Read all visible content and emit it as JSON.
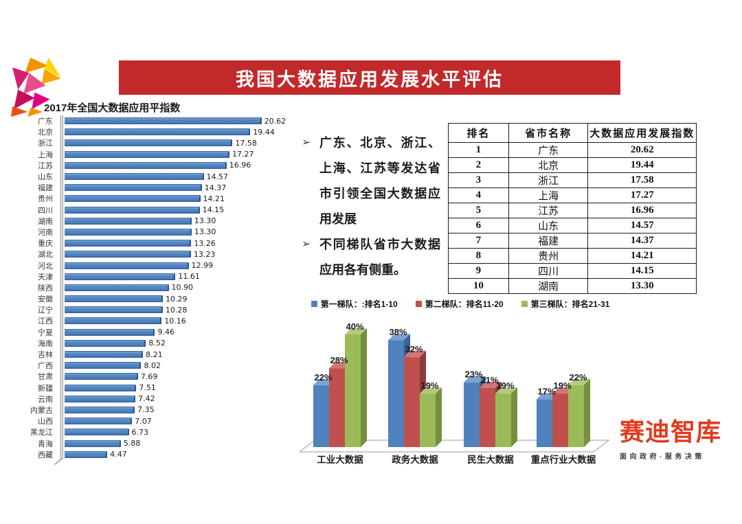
{
  "header": {
    "title": "我国大数据应用发展水平评估",
    "banner_color": "#c2292b"
  },
  "logo": {
    "name": "colorful-polygon-logo",
    "palette": [
      "#f39200",
      "#ffd500",
      "#f7a600",
      "#d61f6f",
      "#e94e8a",
      "#c40d5e",
      "#e6007e",
      "#e94e1b"
    ]
  },
  "bullets": {
    "marker": "➢",
    "items": [
      "广东、北京、浙江、上海、江苏等发达省市引领全国大数据应用发展",
      "不同梯队省市大数据应用各有侧重。"
    ]
  },
  "brand": {
    "name": "赛迪智库",
    "tagline": "面向政府·服务决策",
    "color": "#e23b1f"
  },
  "chart_data": [
    {
      "id": "province_index_bar",
      "type": "bar",
      "orientation": "horizontal",
      "title": "2017年全国大数据应用平指数",
      "categories": [
        "广东",
        "北京",
        "浙江",
        "上海",
        "江苏",
        "山东",
        "福建",
        "贵州",
        "四川",
        "湖南",
        "河南",
        "重庆",
        "湖北",
        "河北",
        "天津",
        "陕西",
        "安徽",
        "辽宁",
        "江西",
        "宁夏",
        "海南",
        "吉林",
        "广西",
        "甘肃",
        "新疆",
        "云南",
        "内蒙古",
        "山西",
        "黑龙江",
        "青海",
        "西藏"
      ],
      "values": [
        20.62,
        19.44,
        17.58,
        17.27,
        16.96,
        14.57,
        14.37,
        14.21,
        14.15,
        13.3,
        13.3,
        13.26,
        13.23,
        12.99,
        11.61,
        10.9,
        10.29,
        10.28,
        10.16,
        9.46,
        8.52,
        8.21,
        8.02,
        7.69,
        7.51,
        7.42,
        7.35,
        7.07,
        6.73,
        5.88,
        4.47
      ],
      "xlim": [
        0,
        22
      ],
      "bar_color": "#4f81bd",
      "value_labels": true,
      "grid": false
    },
    {
      "id": "tier_focus_bar",
      "type": "bar",
      "style": "3d",
      "categories": [
        "工业大数据",
        "政务大数据",
        "民生大数据",
        "重点行业大数据"
      ],
      "series": [
        {
          "name": "第一梯队：:排名1-10",
          "color": "#4f81bd",
          "top": "#7ca1d1",
          "side": "#3a6292",
          "values": [
            22,
            38,
            23,
            17
          ]
        },
        {
          "name": "第二梯队：排名11-20",
          "color": "#c0504d",
          "top": "#cf7976",
          "side": "#8e3b39",
          "values": [
            28,
            32,
            21,
            19
          ]
        },
        {
          "name": "第三梯队：排名21-31",
          "color": "#9bbb59",
          "top": "#b2ca80",
          "side": "#74903e",
          "values": [
            40,
            19,
            19,
            22
          ]
        }
      ],
      "ylim": [
        0,
        45
      ],
      "value_suffix": "%",
      "legend_position": "top",
      "grid": false
    },
    {
      "id": "ranking_table",
      "type": "table",
      "headers": [
        "排名",
        "省市名称",
        "大数据应用发展指数"
      ],
      "rows": [
        [
          "1",
          "广东",
          "20.62"
        ],
        [
          "2",
          "北京",
          "19.44"
        ],
        [
          "3",
          "浙江",
          "17.58"
        ],
        [
          "4",
          "上海",
          "17.27"
        ],
        [
          "5",
          "江苏",
          "16.96"
        ],
        [
          "6",
          "山东",
          "14.57"
        ],
        [
          "7",
          "福建",
          "14.37"
        ],
        [
          "8",
          "贵州",
          "14.21"
        ],
        [
          "9",
          "四川",
          "14.15"
        ],
        [
          "10",
          "湖南",
          "13.30"
        ]
      ]
    }
  ]
}
